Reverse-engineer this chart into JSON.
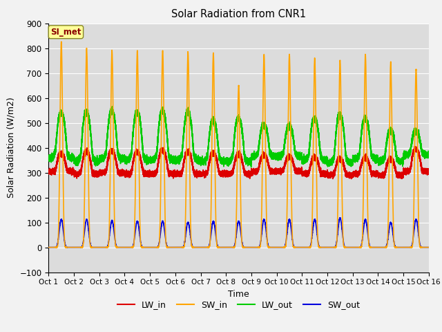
{
  "title": "Solar Radiation from CNR1",
  "xlabel": "Time",
  "ylabel": "Solar Radiation (W/m2)",
  "ylim": [
    -100,
    900
  ],
  "xlim": [
    0,
    15
  ],
  "xtick_labels": [
    "Oct 1",
    "Oct 2",
    "Oct 3",
    "Oct 4",
    "Oct 5",
    "Oct 6",
    "Oct 7",
    "Oct 8",
    "Oct 9",
    "Oct 10",
    "Oct 11",
    "Oct 12",
    "Oct 13",
    "Oct 14",
    "Oct 15",
    "Oct 16"
  ],
  "ytick_values": [
    -100,
    0,
    100,
    200,
    300,
    400,
    500,
    600,
    700,
    800,
    900
  ],
  "series": {
    "LW_in": {
      "color": "#dd0000",
      "linewidth": 1.2
    },
    "SW_in": {
      "color": "#ffa500",
      "linewidth": 1.2
    },
    "LW_out": {
      "color": "#00cc00",
      "linewidth": 1.2
    },
    "SW_out": {
      "color": "#0000dd",
      "linewidth": 1.2
    }
  },
  "legend_labels": [
    "LW_in",
    "SW_in",
    "LW_out",
    "SW_out"
  ],
  "legend_colors": [
    "#dd0000",
    "#ffa500",
    "#00cc00",
    "#0000dd"
  ],
  "annotation_text": "SI_met",
  "annotation_color": "#8b0000",
  "annotation_bg": "#ffff99",
  "background_color": "#dcdcdc",
  "grid_color": "#ffffff",
  "n_days": 15,
  "points_per_day": 1440,
  "SW_in_peaks": [
    825,
    800,
    790,
    790,
    790,
    785,
    780,
    650,
    775,
    775,
    760,
    750,
    775,
    745,
    715
  ],
  "SW_out_peaks": [
    112,
    112,
    108,
    105,
    105,
    100,
    105,
    105,
    112,
    112,
    112,
    118,
    112,
    100,
    112
  ],
  "LW_in_night": [
    305,
    295,
    300,
    295,
    295,
    295,
    295,
    295,
    305,
    305,
    295,
    290,
    295,
    290,
    305
  ],
  "LW_in_day_peak": [
    365,
    370,
    375,
    370,
    375,
    370,
    365,
    360,
    360,
    355,
    350,
    345,
    350,
    345,
    380
  ],
  "LW_out_night": [
    360,
    345,
    355,
    350,
    350,
    350,
    345,
    345,
    365,
    365,
    350,
    340,
    355,
    345,
    370
  ],
  "LW_out_day_peak": [
    510,
    510,
    515,
    510,
    515,
    510,
    480,
    490,
    470,
    465,
    490,
    500,
    490,
    450,
    450
  ]
}
